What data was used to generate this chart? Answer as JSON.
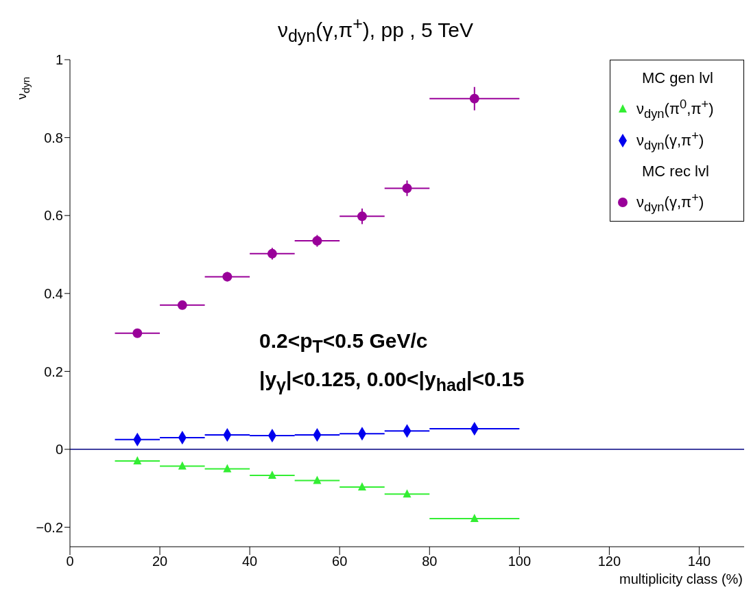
{
  "chart_data": {
    "type": "scatter",
    "title": "ν$_{dyn}$(γ,π$^{+}$), pp , 5 TeV",
    "xlabel": "multiplicity class (%)",
    "ylabel": "ν$_{dyn}$",
    "legend_title": "MC gen lvl",
    "annotations": [
      "0.2<p$_{T}$<0.5 GeV/c",
      "|y$_{γ}$|<0.125, 0.00<|y$_{had}$|<0.15",
      "MC rec lvl"
    ],
    "x": [
      15,
      25,
      35,
      45,
      55,
      65,
      75,
      90
    ],
    "series": [
      {
        "name": "ν$_{dyn}$(π$^{0}$,π$^{+}$)",
        "color": "#33ee33",
        "marker": "triangle",
        "values": [
          -0.03,
          -0.043,
          -0.05,
          -0.067,
          -0.08,
          -0.097,
          -0.115,
          -0.178
        ],
        "xerrors": [
          5,
          5,
          5,
          5,
          5,
          5,
          5,
          10
        ]
      },
      {
        "name": "ν$_{dyn}$(γ,π$^{+}$)",
        "color": "#0000ee",
        "marker": "diamond",
        "values": [
          0.025,
          0.03,
          0.037,
          0.035,
          0.037,
          0.04,
          0.047,
          0.053
        ],
        "xerrors": [
          5,
          5,
          5,
          5,
          5,
          5,
          5,
          10
        ]
      },
      {
        "name": "ν$_{dyn}$(γ,π$^{+}$)",
        "color": "#990099",
        "marker": "circle",
        "values": [
          0.298,
          0.37,
          0.443,
          0.502,
          0.535,
          0.598,
          0.67,
          0.9
        ],
        "xerrors": [
          5,
          5,
          5,
          5,
          5,
          5,
          5,
          10
        ],
        "errors": [
          0.01,
          0.01,
          0.012,
          0.015,
          0.015,
          0.02,
          0.02,
          0.03
        ]
      }
    ],
    "xlim": [
      0,
      150
    ],
    "xticks": [
      0,
      20,
      40,
      60,
      80,
      100,
      120,
      140
    ],
    "ylim": [
      -0.25,
      1
    ],
    "yticks": [
      {
        "value": -0.2,
        "label": "−0.2"
      },
      0,
      0.2,
      0.4,
      0.6,
      0.8,
      1
    ],
    "ref_lines": [
      {
        "axis": "y",
        "value": 0,
        "color": "#000080"
      }
    ],
    "grid": false,
    "legend": "top right"
  }
}
